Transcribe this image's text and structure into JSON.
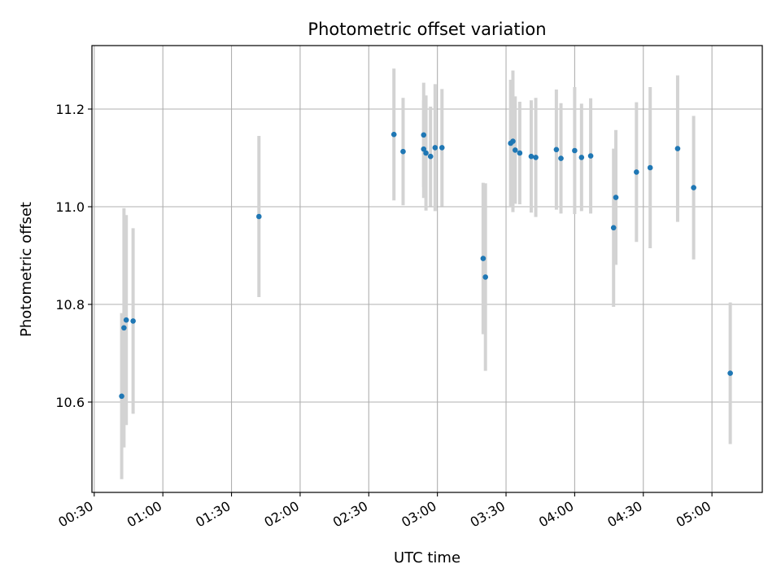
{
  "chart_data": {
    "type": "scatter",
    "title": "Photometric offset variation",
    "xlabel": "UTC time",
    "ylabel": "Photometric offset",
    "x_axis_type": "time",
    "xlim": [
      "00:29",
      "05:22"
    ],
    "ylim": [
      10.415,
      11.33
    ],
    "grid": true,
    "x_ticks": [
      "00:30",
      "01:00",
      "01:30",
      "02:00",
      "02:30",
      "03:00",
      "03:30",
      "04:00",
      "04:30",
      "05:00"
    ],
    "y_ticks": [
      10.6,
      10.8,
      11.0,
      11.2
    ],
    "y_tick_labels": [
      "10.6",
      "10.8",
      "11.0",
      "11.2"
    ],
    "colors": {
      "point": "#1f77b4",
      "errorbar": "#d3d3d3",
      "grid": "#b0b0b0"
    },
    "points": [
      {
        "x": "00:42",
        "y": 10.612,
        "err": 0.17
      },
      {
        "x": "00:43",
        "y": 10.752,
        "err": 0.245
      },
      {
        "x": "00:44",
        "y": 10.768,
        "err": 0.215
      },
      {
        "x": "00:47",
        "y": 10.766,
        "err": 0.19
      },
      {
        "x": "01:42",
        "y": 10.98,
        "err": 0.165
      },
      {
        "x": "02:41",
        "y": 11.148,
        "err": 0.135
      },
      {
        "x": "02:45",
        "y": 11.113,
        "err": 0.11
      },
      {
        "x": "02:54",
        "y": 11.118,
        "err": 0.1
      },
      {
        "x": "02:54",
        "y": 11.147,
        "err": 0.107
      },
      {
        "x": "02:55",
        "y": 11.11,
        "err": 0.118
      },
      {
        "x": "02:57",
        "y": 11.103,
        "err": 0.102
      },
      {
        "x": "02:59",
        "y": 11.121,
        "err": 0.13
      },
      {
        "x": "03:02",
        "y": 11.121,
        "err": 0.12
      },
      {
        "x": "03:20",
        "y": 10.894,
        "err": 0.155
      },
      {
        "x": "03:21",
        "y": 10.856,
        "err": 0.192
      },
      {
        "x": "03:32",
        "y": 11.13,
        "err": 0.13
      },
      {
        "x": "03:33",
        "y": 11.134,
        "err": 0.145
      },
      {
        "x": "03:34",
        "y": 11.116,
        "err": 0.11
      },
      {
        "x": "03:36",
        "y": 11.11,
        "err": 0.105
      },
      {
        "x": "03:41",
        "y": 11.103,
        "err": 0.115
      },
      {
        "x": "03:43",
        "y": 11.101,
        "err": 0.122
      },
      {
        "x": "03:52",
        "y": 11.117,
        "err": 0.123
      },
      {
        "x": "03:54",
        "y": 11.099,
        "err": 0.113
      },
      {
        "x": "04:00",
        "y": 11.115,
        "err": 0.13
      },
      {
        "x": "04:03",
        "y": 11.101,
        "err": 0.11
      },
      {
        "x": "04:07",
        "y": 11.104,
        "err": 0.118
      },
      {
        "x": "04:17",
        "y": 10.957,
        "err": 0.162
      },
      {
        "x": "04:18",
        "y": 11.019,
        "err": 0.138
      },
      {
        "x": "04:27",
        "y": 11.071,
        "err": 0.143
      },
      {
        "x": "04:33",
        "y": 11.08,
        "err": 0.165
      },
      {
        "x": "04:45",
        "y": 11.119,
        "err": 0.15
      },
      {
        "x": "04:52",
        "y": 11.039,
        "err": 0.147
      },
      {
        "x": "05:08",
        "y": 10.659,
        "err": 0.145
      }
    ]
  }
}
